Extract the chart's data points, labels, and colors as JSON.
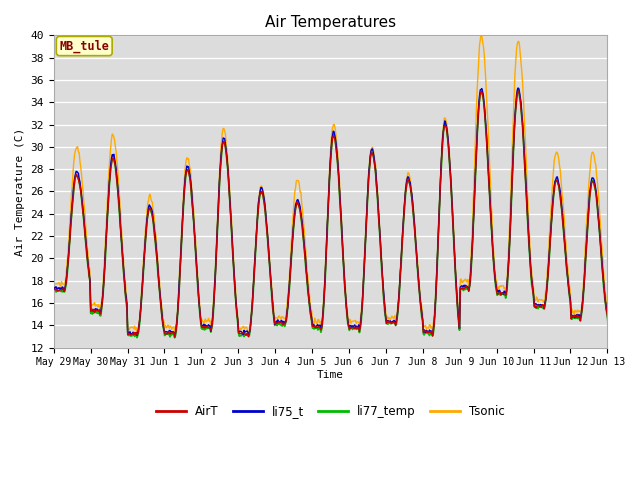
{
  "title": "Air Temperatures",
  "xlabel": "Time",
  "ylabel": "Air Temperature (C)",
  "ylim": [
    12,
    40
  ],
  "yticks": [
    12,
    14,
    16,
    18,
    20,
    22,
    24,
    26,
    28,
    30,
    32,
    34,
    36,
    38,
    40
  ],
  "plot_bg_color": "#dcdcdc",
  "grid_color": "#ffffff",
  "annotation_text": "MB_tule",
  "annotation_bg": "#ffffcc",
  "annotation_border": "#aaaa00",
  "annotation_text_color": "#880000",
  "series": {
    "AirT": {
      "color": "#cc0000",
      "lw": 1.0,
      "zorder": 4
    },
    "li75_t": {
      "color": "#0000cc",
      "lw": 1.0,
      "zorder": 3
    },
    "li77_temp": {
      "color": "#00bb00",
      "lw": 1.3,
      "zorder": 2
    },
    "Tsonic": {
      "color": "#ffaa00",
      "lw": 1.0,
      "zorder": 1
    }
  },
  "tick_labels": [
    "May 29",
    "May 30",
    "May 31",
    "Jun 1",
    "Jun 2",
    "Jun 3",
    "Jun 4",
    "Jun 5",
    "Jun 6",
    "Jun 7",
    "Jun 8",
    "Jun 9",
    "Jun 10",
    "Jun 11",
    "Jun 12",
    "Jun 13"
  ]
}
